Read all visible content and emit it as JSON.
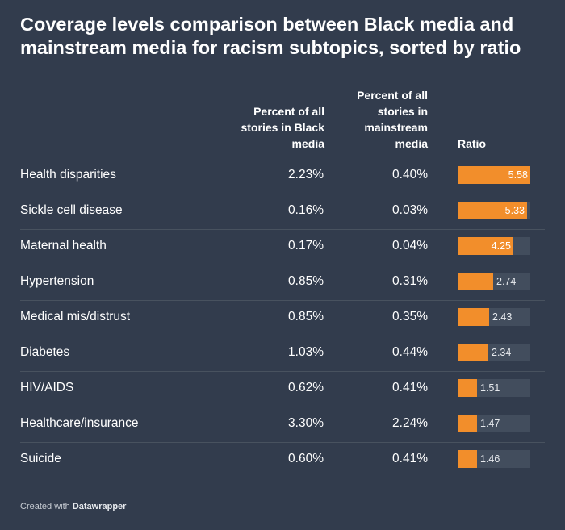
{
  "title": "Coverage levels comparison between Black media and mainstream media for racism subtopics, sorted by ratio",
  "headers": {
    "black_media": "Percent of all stories in Black media",
    "mainstream_media": "Percent of all stories in mainstream media",
    "ratio": "Ratio"
  },
  "footer": {
    "prefix": "Created with ",
    "brand": "Datawrapper"
  },
  "colors": {
    "background": "#323c4d",
    "bar": "#f28e2b",
    "bar_track": "#424d5d"
  },
  "chart_data": {
    "type": "table",
    "columns": [
      "",
      "Percent of all stories in Black media",
      "Percent of all stories in mainstream media",
      "Ratio"
    ],
    "ratio_max": 5.58,
    "rows": [
      {
        "topic": "Health disparities",
        "black": "2.23%",
        "mainstream": "0.40%",
        "ratio": 5.58
      },
      {
        "topic": "Sickle cell disease",
        "black": "0.16%",
        "mainstream": "0.03%",
        "ratio": 5.33
      },
      {
        "topic": "Maternal health",
        "black": "0.17%",
        "mainstream": "0.04%",
        "ratio": 4.25
      },
      {
        "topic": "Hypertension",
        "black": "0.85%",
        "mainstream": "0.31%",
        "ratio": 2.74
      },
      {
        "topic": "Medical mis/distrust",
        "black": "0.85%",
        "mainstream": "0.35%",
        "ratio": 2.43
      },
      {
        "topic": "Diabetes",
        "black": "1.03%",
        "mainstream": "0.44%",
        "ratio": 2.34
      },
      {
        "topic": "HIV/AIDS",
        "black": "0.62%",
        "mainstream": "0.41%",
        "ratio": 1.51
      },
      {
        "topic": "Healthcare/insurance",
        "black": "3.30%",
        "mainstream": "2.24%",
        "ratio": 1.47
      },
      {
        "topic": "Suicide",
        "black": "0.60%",
        "mainstream": "0.41%",
        "ratio": 1.46
      }
    ]
  }
}
